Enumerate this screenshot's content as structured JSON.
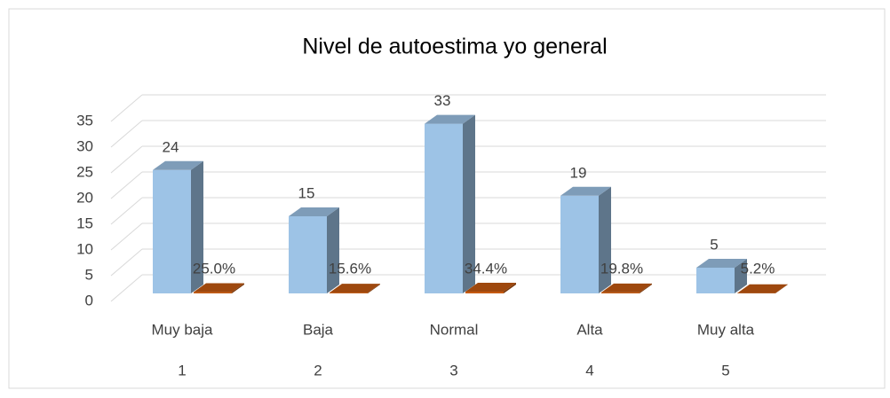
{
  "chart_data": {
    "type": "bar3d",
    "title": "Nivel de autoestima yo general",
    "categories": [
      "Muy baja",
      "Baja",
      "Normal",
      "Alta",
      "Muy alta"
    ],
    "category_numbers": [
      "1",
      "2",
      "3",
      "4",
      "5"
    ],
    "series": [
      {
        "color": "#9dc3e6",
        "values": [
          24,
          15,
          33,
          19,
          5
        ]
      },
      {
        "color": "#c55a11",
        "values": [
          0.25,
          0.156,
          0.344,
          0.198,
          0.052
        ],
        "value_labels": [
          "25.0%",
          "15.6%",
          "34.4%",
          "19.8%",
          "5.2%"
        ]
      }
    ],
    "ylim": [
      0,
      35
    ],
    "yticks": [
      0,
      5,
      10,
      15,
      20,
      25,
      30,
      35
    ],
    "grid": true
  }
}
